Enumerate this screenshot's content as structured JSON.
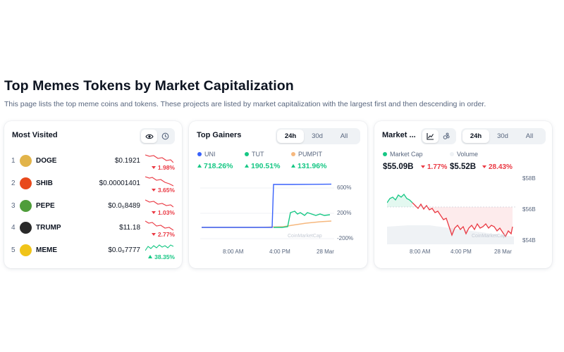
{
  "page": {
    "title": "Top Memes Tokens by Market Capitalization",
    "description": "This page lists the top meme coins and tokens. These projects are listed by market capitalization with the largest first and then descending in order."
  },
  "colors": {
    "positive": "#16c784",
    "negative": "#ea3943",
    "uni": "#3861fb",
    "tut": "#16c784",
    "pumpit": "#f6b87e",
    "text": "#0d1421",
    "muted": "#58667e"
  },
  "most_visited": {
    "title": "Most Visited",
    "icons": [
      "eye-icon",
      "clock-icon"
    ],
    "rows": [
      {
        "rank": "1",
        "symbol": "DOGE",
        "price": "$0.1921",
        "change": "1.98%",
        "direction": "down",
        "logo_color": "#e2b44a",
        "icon": "doge-logo-icon"
      },
      {
        "rank": "2",
        "symbol": "SHIB",
        "price": "$0.00001401",
        "change": "3.65%",
        "direction": "down",
        "logo_color": "#e8491c",
        "icon": "shib-logo-icon"
      },
      {
        "rank": "3",
        "symbol": "PEPE",
        "price": "$0.0₅8489",
        "change": "1.03%",
        "direction": "down",
        "logo_color": "#4f9d3a",
        "icon": "pepe-logo-icon"
      },
      {
        "rank": "4",
        "symbol": "TRUMP",
        "price": "$11.18",
        "change": "2.77%",
        "direction": "down",
        "logo_color": "#2a2a2a",
        "icon": "trump-logo-icon"
      },
      {
        "rank": "5",
        "symbol": "MEME",
        "price": "$0.0₉7777",
        "change": "38.35%",
        "direction": "up",
        "logo_color": "#f0c419",
        "icon": "meme-logo-icon"
      }
    ]
  },
  "top_gainers": {
    "title": "Top Gainers",
    "tabs": [
      "24h",
      "30d",
      "All"
    ],
    "active_tab": "24h",
    "series": [
      {
        "name": "UNI",
        "change": "718.26%",
        "color": "#3861fb"
      },
      {
        "name": "TUT",
        "change": "190.51%",
        "color": "#16c784"
      },
      {
        "name": "PUMPIT",
        "change": "131.96%",
        "color": "#f6b87e"
      }
    ],
    "y_labels": [
      "600%",
      "200%",
      "-200%"
    ],
    "x_labels": [
      "8:00 AM",
      "4:00 PM",
      "28 Mar"
    ],
    "watermark": "CoinMarketCap"
  },
  "market_cap": {
    "title": "Market ...",
    "icons": [
      "line-chart-icon",
      "bubbles-icon"
    ],
    "tabs": [
      "24h",
      "30d",
      "All"
    ],
    "active_tab": "24h",
    "legend": [
      {
        "name": "Market Cap",
        "color": "#16c784"
      },
      {
        "name": "Volume",
        "color": "#eff2f5"
      }
    ],
    "market_cap_value": "$55.09B",
    "market_cap_change": "1.77%",
    "volume_value": "$5.52B",
    "volume_change": "28.43%",
    "y_labels": [
      "$58B",
      "$56B",
      "$54B"
    ],
    "x_labels": [
      "8:00 AM",
      "4:00 PM",
      "28 Mar"
    ],
    "watermark": "CoinMarketCap"
  }
}
